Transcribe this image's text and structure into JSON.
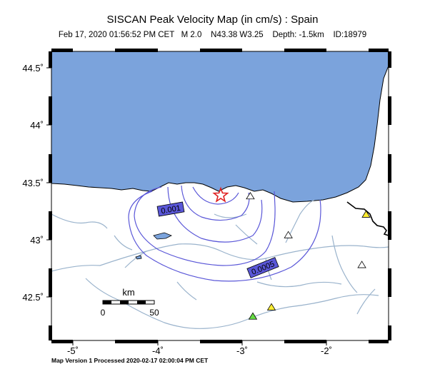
{
  "title": "SISCAN Peak Velocity Map (in cm/s) : Spain",
  "subtitle": "Feb 17, 2020 01:56:52 PM CET   M 2.0    N43.38 W3.25    Depth: -1.5km    ID:18979",
  "footer": "Map Version 1 Processed 2020-02-17 02:00:04 PM CET",
  "axes": {
    "lat_labels": [
      "44.5˚",
      "44˚",
      "43.5˚",
      "43˚",
      "42.5˚"
    ],
    "lon_labels": [
      "-5˚",
      "-4˚",
      "-3˚",
      "-2˚"
    ]
  },
  "contours": {
    "label_1": "0.001",
    "label_2": "0.0005"
  },
  "scale_bar": {
    "unit": "km",
    "start": "0",
    "end": "50"
  },
  "epicenter": {
    "lat": 43.38,
    "lon": -3.25,
    "symbol": "star"
  },
  "stations": [
    {
      "color": "#ffffff",
      "lat": 43.38,
      "lon": -2.9
    },
    {
      "color": "#ffee33",
      "lat": 43.22,
      "lon": -1.53
    },
    {
      "color": "#ffffff",
      "lat": 43.04,
      "lon": -2.45
    },
    {
      "color": "#ffffff",
      "lat": 42.78,
      "lon": -1.58
    },
    {
      "color": "#ffee33",
      "lat": 42.41,
      "lon": -2.65
    },
    {
      "color": "#66dd44",
      "lat": 42.33,
      "lon": -2.87
    }
  ],
  "colors": {
    "sea": "#7ba3dc",
    "contour": "#5a57d8",
    "river": "#9ab3cc",
    "epicenter": "#e02020"
  }
}
